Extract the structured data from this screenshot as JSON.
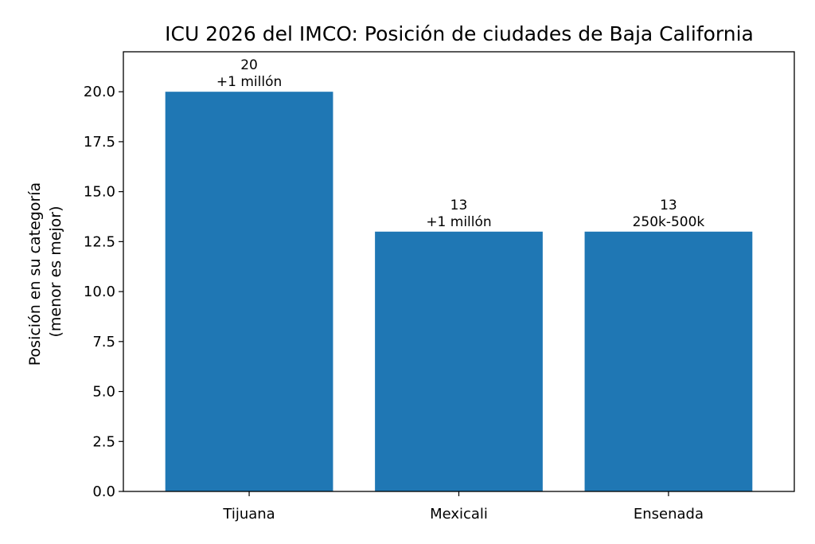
{
  "chart_data": {
    "type": "bar",
    "title": "ICU 2026 del IMCO: Posición de ciudades de Baja California",
    "xlabel": "",
    "ylabel_lines": [
      "Posición en su categoría",
      "(menor es mejor)"
    ],
    "categories": [
      "Tijuana",
      "Mexicali",
      "Ensenada"
    ],
    "values": [
      20,
      13,
      13
    ],
    "bar_labels": [
      [
        "20",
        "+1 millón"
      ],
      [
        "13",
        "+1 millón"
      ],
      [
        "13",
        "250k-500k"
      ]
    ],
    "ylim": [
      0,
      22
    ],
    "yticks": [
      0,
      2.5,
      5,
      7.5,
      10,
      12.5,
      15,
      17.5,
      20
    ],
    "ytick_labels": [
      "0.0",
      "2.5",
      "5.0",
      "7.5",
      "10.0",
      "12.5",
      "15.0",
      "17.5",
      "20.0"
    ],
    "bar_color": "#1f77b4",
    "grid": false,
    "legend": "none"
  }
}
